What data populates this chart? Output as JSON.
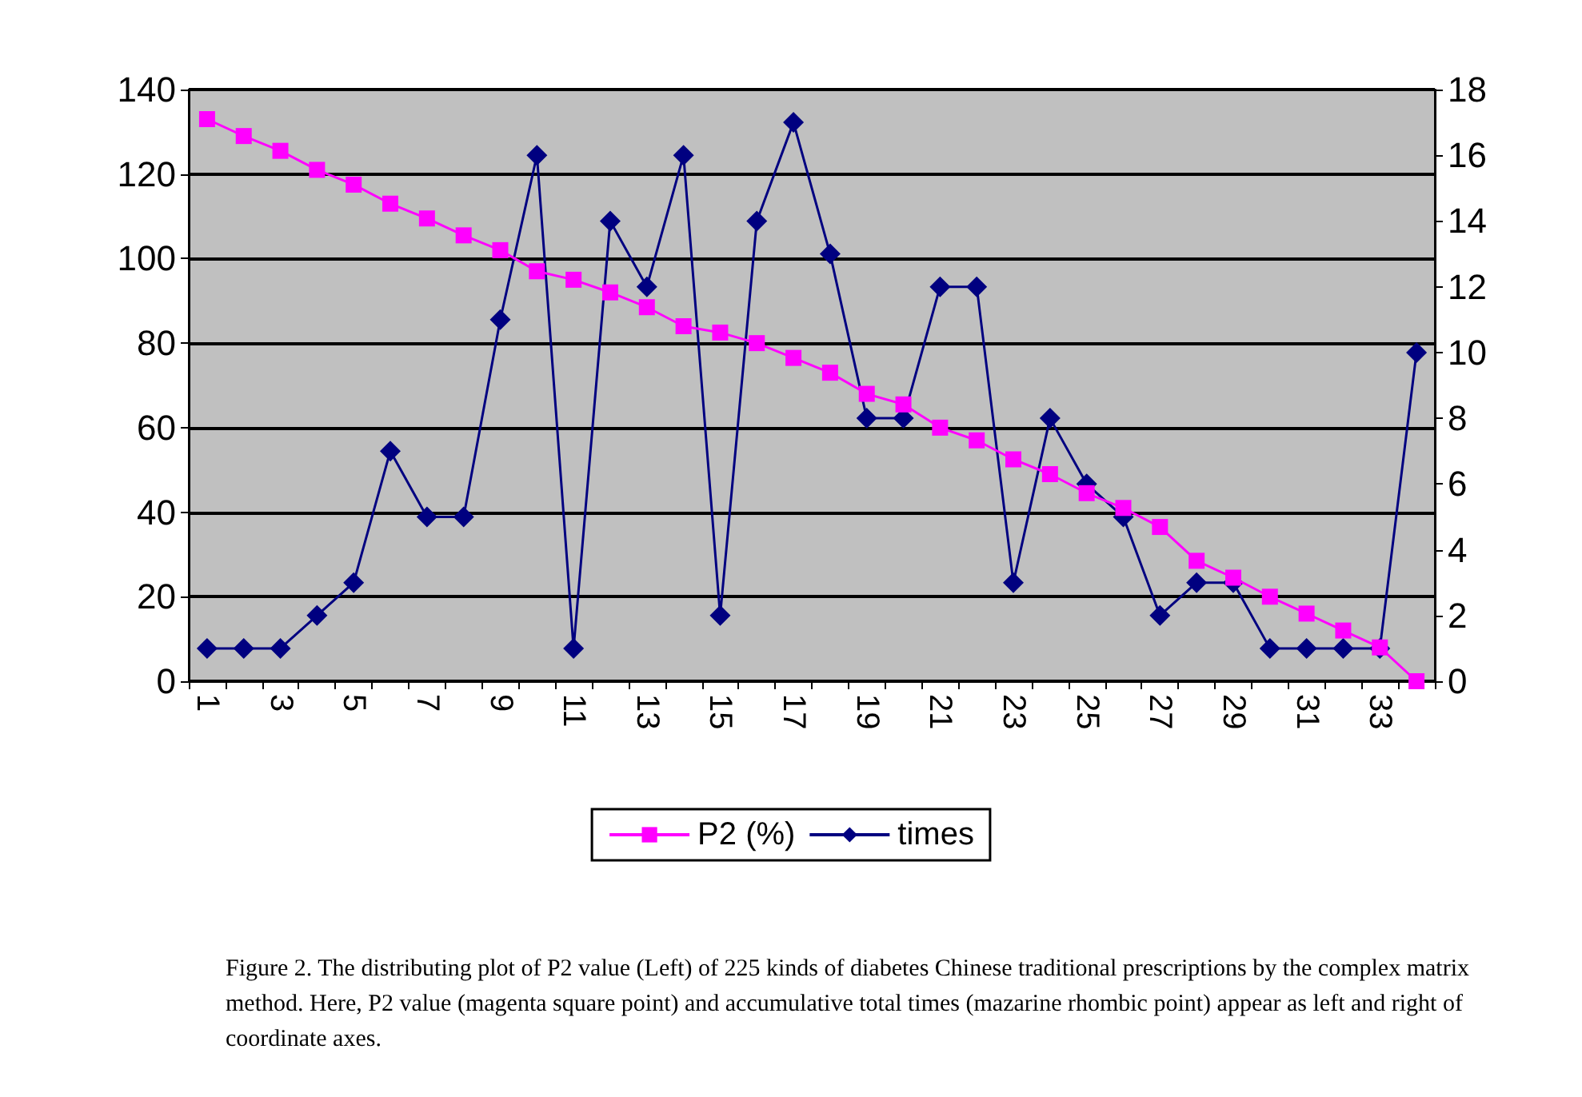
{
  "chart_data": {
    "type": "line",
    "categories": [
      "1",
      null,
      "3",
      null,
      "5",
      null,
      "7",
      null,
      "9",
      null,
      "11",
      null,
      "13",
      null,
      "15",
      null,
      "17",
      null,
      "19",
      null,
      "21",
      null,
      "23",
      null,
      "25",
      null,
      "27",
      null,
      "29",
      null,
      "31",
      null,
      "33",
      null
    ],
    "series": [
      {
        "name": "P2 (%)",
        "color": "#ff00ff",
        "marker": "square",
        "values": [
          133,
          129,
          125.5,
          121,
          117.5,
          113,
          109.5,
          105.5,
          102,
          97,
          95,
          92,
          88.5,
          84,
          82.5,
          80,
          76.5,
          73,
          68,
          65.5,
          60,
          57,
          52.5,
          49,
          44.5,
          41,
          36.5,
          28.5,
          24.5,
          20,
          16,
          12,
          8,
          0
        ]
      },
      {
        "name": "times",
        "color": "#000080",
        "marker": "diamond",
        "axis": "y2",
        "values": [
          1,
          1,
          1,
          2,
          3,
          7,
          5,
          5,
          11,
          16,
          1,
          14,
          12,
          16,
          2,
          14,
          17,
          13,
          8,
          8,
          12,
          12,
          3,
          8,
          6,
          5,
          2,
          3,
          3,
          1,
          1,
          1,
          1,
          10
        ]
      }
    ],
    "ylim": [
      0,
      140
    ],
    "yticks": [
      0,
      20,
      40,
      60,
      80,
      100,
      120,
      140
    ],
    "y2lim": [
      0,
      18
    ],
    "y2ticks": [
      0,
      2,
      4,
      6,
      8,
      10,
      12,
      14,
      16,
      18
    ],
    "grid": "y",
    "legend": "bottom",
    "annotations": [
      "Figure 2. The distributing plot of P2 value (Left) of 225 kinds of diabetes Chinese traditional prescriptions by the complex matrix method. Here, P2 value (magenta square point) and accumulative total times (mazarine rhombic point) appear as left and right of coordinate axes."
    ]
  }
}
